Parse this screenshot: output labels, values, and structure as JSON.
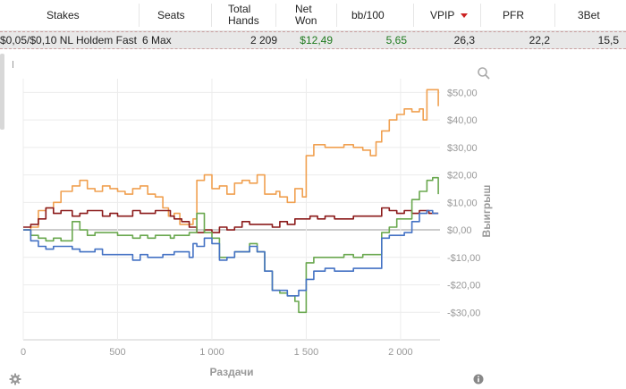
{
  "table": {
    "headers": [
      {
        "key": "stakes",
        "label": "Stakes"
      },
      {
        "key": "seats",
        "label": "Seats"
      },
      {
        "key": "total_hands",
        "label": "Total\nHands"
      },
      {
        "key": "net_won",
        "label": "Net\nWon"
      },
      {
        "key": "bb100",
        "label": "bb/100"
      },
      {
        "key": "vpip",
        "label": "VPIP"
      },
      {
        "key": "pfr",
        "label": "PFR"
      },
      {
        "key": "threebet",
        "label": "3Bet"
      }
    ],
    "sorted_column": "vpip",
    "row": {
      "stakes": "$0,05/$0,10 NL Holdem Fast",
      "seats": "6 Max",
      "total_hands": "2 209",
      "net_won": "$12,49",
      "bb100": "5,65",
      "vpip": "26,3",
      "pfr": "22,2",
      "threebet": "15,5"
    }
  },
  "chart_data": {
    "type": "line",
    "xlabel": "Раздачи",
    "ylabel": "Выигрыш",
    "xlim": [
      0,
      2209
    ],
    "ylim": [
      -40,
      55
    ],
    "x_ticks": [
      {
        "v": 0,
        "label": "0"
      },
      {
        "v": 500,
        "label": "500"
      },
      {
        "v": 1000,
        "label": "1 000"
      },
      {
        "v": 1500,
        "label": "1 500"
      },
      {
        "v": 2000,
        "label": "2 000"
      }
    ],
    "y_ticks": [
      {
        "v": 50,
        "label": "$50,00"
      },
      {
        "v": 40,
        "label": "$40,00"
      },
      {
        "v": 30,
        "label": "$30,00"
      },
      {
        "v": 20,
        "label": "$20,00"
      },
      {
        "v": 10,
        "label": "$10,00"
      },
      {
        "v": 0,
        "label": "$0,00"
      },
      {
        "v": -10,
        "label": "-$10,00"
      },
      {
        "v": -20,
        "label": "-$20,00"
      },
      {
        "v": -30,
        "label": "-$30,00"
      }
    ],
    "grid": true,
    "series": [
      {
        "color": "#f0a050",
        "points": [
          [
            0,
            0
          ],
          [
            40,
            1
          ],
          [
            80,
            7
          ],
          [
            120,
            8
          ],
          [
            160,
            10
          ],
          [
            200,
            14
          ],
          [
            260,
            16
          ],
          [
            300,
            18
          ],
          [
            340,
            15
          ],
          [
            380,
            14
          ],
          [
            420,
            16
          ],
          [
            460,
            15
          ],
          [
            500,
            14
          ],
          [
            540,
            13
          ],
          [
            580,
            15
          ],
          [
            620,
            16
          ],
          [
            660,
            13
          ],
          [
            700,
            12
          ],
          [
            740,
            8
          ],
          [
            770,
            5
          ],
          [
            800,
            6
          ],
          [
            830,
            2
          ],
          [
            860,
            2
          ],
          [
            900,
            4
          ],
          [
            920,
            18
          ],
          [
            960,
            20
          ],
          [
            1000,
            15
          ],
          [
            1040,
            16
          ],
          [
            1080,
            13
          ],
          [
            1120,
            17
          ],
          [
            1160,
            18
          ],
          [
            1200,
            17
          ],
          [
            1240,
            20
          ],
          [
            1280,
            13
          ],
          [
            1320,
            13
          ],
          [
            1340,
            14
          ],
          [
            1360,
            12
          ],
          [
            1400,
            10
          ],
          [
            1440,
            15
          ],
          [
            1480,
            12
          ],
          [
            1500,
            27
          ],
          [
            1540,
            31
          ],
          [
            1600,
            30
          ],
          [
            1650,
            30
          ],
          [
            1700,
            31
          ],
          [
            1750,
            30
          ],
          [
            1800,
            29
          ],
          [
            1840,
            27
          ],
          [
            1870,
            32
          ],
          [
            1900,
            36
          ],
          [
            1940,
            40
          ],
          [
            1980,
            42
          ],
          [
            2020,
            44
          ],
          [
            2060,
            43
          ],
          [
            2100,
            44
          ],
          [
            2120,
            40
          ],
          [
            2140,
            51
          ],
          [
            2170,
            51
          ],
          [
            2200,
            45
          ]
        ]
      },
      {
        "color": "#8b1a1a",
        "points": [
          [
            0,
            1
          ],
          [
            40,
            2
          ],
          [
            80,
            4
          ],
          [
            120,
            8
          ],
          [
            160,
            6
          ],
          [
            200,
            7
          ],
          [
            260,
            5
          ],
          [
            300,
            6
          ],
          [
            340,
            7
          ],
          [
            380,
            7
          ],
          [
            420,
            5
          ],
          [
            460,
            6
          ],
          [
            500,
            5
          ],
          [
            540,
            5
          ],
          [
            580,
            7
          ],
          [
            620,
            6
          ],
          [
            660,
            6
          ],
          [
            700,
            7
          ],
          [
            740,
            7
          ],
          [
            780,
            5
          ],
          [
            800,
            4
          ],
          [
            840,
            3
          ],
          [
            880,
            1
          ],
          [
            920,
            -1
          ],
          [
            960,
            0
          ],
          [
            1000,
            -1
          ],
          [
            1040,
            1
          ],
          [
            1080,
            0
          ],
          [
            1120,
            1
          ],
          [
            1160,
            3
          ],
          [
            1200,
            2
          ],
          [
            1240,
            2
          ],
          [
            1280,
            2
          ],
          [
            1320,
            1
          ],
          [
            1360,
            3
          ],
          [
            1400,
            2
          ],
          [
            1440,
            4
          ],
          [
            1480,
            4
          ],
          [
            1520,
            5
          ],
          [
            1560,
            4
          ],
          [
            1600,
            5
          ],
          [
            1650,
            4
          ],
          [
            1700,
            4
          ],
          [
            1750,
            5
          ],
          [
            1800,
            5
          ],
          [
            1850,
            5
          ],
          [
            1900,
            8
          ],
          [
            1940,
            7
          ],
          [
            1980,
            6
          ],
          [
            2020,
            7
          ],
          [
            2060,
            6
          ],
          [
            2100,
            7
          ],
          [
            2150,
            6
          ],
          [
            2200,
            6
          ]
        ]
      },
      {
        "color": "#6aa84f",
        "points": [
          [
            0,
            0
          ],
          [
            40,
            -2
          ],
          [
            80,
            -3
          ],
          [
            120,
            -4
          ],
          [
            160,
            -3
          ],
          [
            200,
            -4
          ],
          [
            260,
            3
          ],
          [
            300,
            0
          ],
          [
            340,
            -2
          ],
          [
            380,
            -1
          ],
          [
            420,
            -1
          ],
          [
            460,
            -1
          ],
          [
            500,
            -2
          ],
          [
            540,
            -2
          ],
          [
            580,
            -3
          ],
          [
            620,
            -2
          ],
          [
            660,
            -3
          ],
          [
            700,
            -2
          ],
          [
            740,
            -2
          ],
          [
            780,
            -3
          ],
          [
            800,
            -2
          ],
          [
            840,
            -2
          ],
          [
            880,
            -1
          ],
          [
            920,
            6
          ],
          [
            960,
            -1
          ],
          [
            1000,
            -3
          ],
          [
            1040,
            -10
          ],
          [
            1080,
            -10
          ],
          [
            1120,
            -8
          ],
          [
            1160,
            -8
          ],
          [
            1200,
            -5
          ],
          [
            1240,
            -8
          ],
          [
            1280,
            -15
          ],
          [
            1320,
            -22
          ],
          [
            1360,
            -23
          ],
          [
            1400,
            -24
          ],
          [
            1440,
            -26
          ],
          [
            1460,
            -30
          ],
          [
            1500,
            -12
          ],
          [
            1540,
            -10
          ],
          [
            1600,
            -10
          ],
          [
            1650,
            -10
          ],
          [
            1700,
            -9
          ],
          [
            1750,
            -10
          ],
          [
            1800,
            -9
          ],
          [
            1850,
            -9
          ],
          [
            1900,
            -1
          ],
          [
            1940,
            1
          ],
          [
            1980,
            4
          ],
          [
            2020,
            4
          ],
          [
            2060,
            11
          ],
          [
            2100,
            14
          ],
          [
            2140,
            18
          ],
          [
            2170,
            19
          ],
          [
            2200,
            13
          ]
        ]
      },
      {
        "color": "#4472c4",
        "points": [
          [
            0,
            0
          ],
          [
            40,
            -4
          ],
          [
            80,
            -6
          ],
          [
            120,
            -7
          ],
          [
            160,
            -6
          ],
          [
            200,
            -6
          ],
          [
            260,
            -7
          ],
          [
            300,
            -8
          ],
          [
            340,
            -8
          ],
          [
            380,
            -7
          ],
          [
            420,
            -9
          ],
          [
            460,
            -9
          ],
          [
            500,
            -9
          ],
          [
            540,
            -9
          ],
          [
            580,
            -11
          ],
          [
            620,
            -9
          ],
          [
            660,
            -10
          ],
          [
            700,
            -10
          ],
          [
            740,
            -9
          ],
          [
            780,
            -9
          ],
          [
            800,
            -8
          ],
          [
            840,
            -8
          ],
          [
            880,
            -10
          ],
          [
            900,
            -5
          ],
          [
            920,
            -6
          ],
          [
            960,
            -3
          ],
          [
            1000,
            -5
          ],
          [
            1040,
            -11
          ],
          [
            1080,
            -10
          ],
          [
            1120,
            -8
          ],
          [
            1160,
            -8
          ],
          [
            1200,
            -6
          ],
          [
            1240,
            -8
          ],
          [
            1280,
            -15
          ],
          [
            1320,
            -22
          ],
          [
            1360,
            -22
          ],
          [
            1400,
            -24
          ],
          [
            1440,
            -24
          ],
          [
            1460,
            -22
          ],
          [
            1500,
            -18
          ],
          [
            1540,
            -15
          ],
          [
            1600,
            -14
          ],
          [
            1650,
            -15
          ],
          [
            1700,
            -15
          ],
          [
            1750,
            -14
          ],
          [
            1800,
            -14
          ],
          [
            1850,
            -14
          ],
          [
            1900,
            -3
          ],
          [
            1940,
            -2
          ],
          [
            1980,
            -2
          ],
          [
            2020,
            -1
          ],
          [
            2060,
            3
          ],
          [
            2100,
            6
          ],
          [
            2140,
            7
          ],
          [
            2170,
            6
          ],
          [
            2200,
            6
          ]
        ]
      }
    ]
  },
  "icons": {
    "zoom": "magnifier-icon",
    "settings": "gear-icon",
    "info": "info-icon"
  }
}
